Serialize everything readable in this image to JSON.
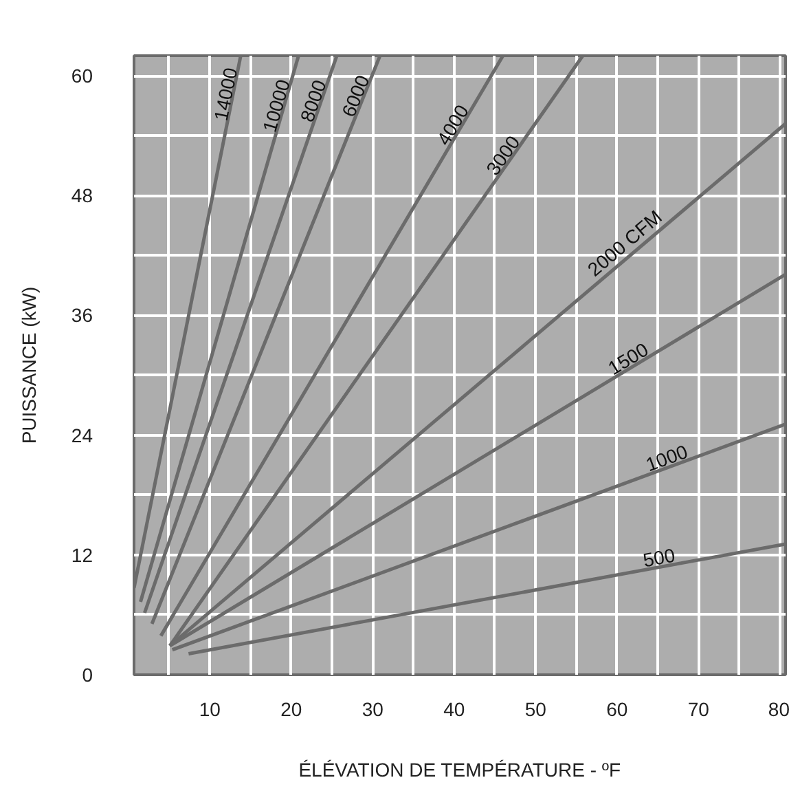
{
  "chart_data": {
    "type": "line",
    "xlabel": "ÉLÉVATION DE TEMPÉRATURE - ºF",
    "ylabel": "PUISSANCE (kW)",
    "xlim": [
      0.7,
      80.7
    ],
    "ylim": [
      0,
      62
    ],
    "xticks": [
      {
        "value": 5,
        "label": null
      },
      10,
      {
        "value": 15,
        "label": null
      },
      20,
      {
        "value": 25,
        "label": null
      },
      30,
      {
        "value": 35,
        "label": null
      },
      40,
      {
        "value": 45,
        "label": null
      },
      50,
      {
        "value": 55,
        "label": null
      },
      60,
      {
        "value": 65,
        "label": null
      },
      70,
      {
        "value": 75,
        "label": null
      },
      80
    ],
    "yticks": [
      0,
      {
        "value": 6,
        "label": null
      },
      12,
      {
        "value": 18,
        "label": null
      },
      24,
      {
        "value": 30,
        "label": null
      },
      36,
      {
        "value": 42,
        "label": null
      },
      48,
      {
        "value": 54,
        "label": null
      },
      60
    ],
    "grid": true,
    "legend": false,
    "marker": "none",
    "line_style": "solid",
    "series": [
      {
        "name": "14000",
        "color": "#6b6b6b",
        "x": [
          0.7,
          13.8
        ],
        "values": [
          8.7,
          62
        ]
      },
      {
        "name": "10000",
        "color": "#6b6b6b",
        "x": [
          1.5,
          20.9
        ],
        "values": [
          7.3,
          62
        ]
      },
      {
        "name": "8000",
        "color": "#6b6b6b",
        "x": [
          2.0,
          25.6
        ],
        "values": [
          6.2,
          62
        ]
      },
      {
        "name": "6000",
        "color": "#6b6b6b",
        "x": [
          2.9,
          30.9
        ],
        "values": [
          5.1,
          62
        ]
      },
      {
        "name": "4000",
        "color": "#6b6b6b",
        "x": [
          4.0,
          46.0
        ],
        "values": [
          3.9,
          62
        ]
      },
      {
        "name": "3000",
        "color": "#6b6b6b",
        "x": [
          5.1,
          55.8
        ],
        "values": [
          2.9,
          62
        ]
      },
      {
        "name": "2000 CFM",
        "color": "#6b6b6b",
        "x": [
          5.1,
          80.7
        ],
        "values": [
          2.9,
          55.2
        ]
      },
      {
        "name": "1500",
        "color": "#6b6b6b",
        "x": [
          5.1,
          80.7
        ],
        "values": [
          2.9,
          40.1
        ]
      },
      {
        "name": "1000",
        "color": "#6b6b6b",
        "x": [
          5.4,
          80.7
        ],
        "values": [
          2.5,
          25.1
        ]
      },
      {
        "name": "500",
        "color": "#6b6b6b",
        "x": [
          7.4,
          80.7
        ],
        "values": [
          2.1,
          13.1
        ]
      }
    ]
  }
}
